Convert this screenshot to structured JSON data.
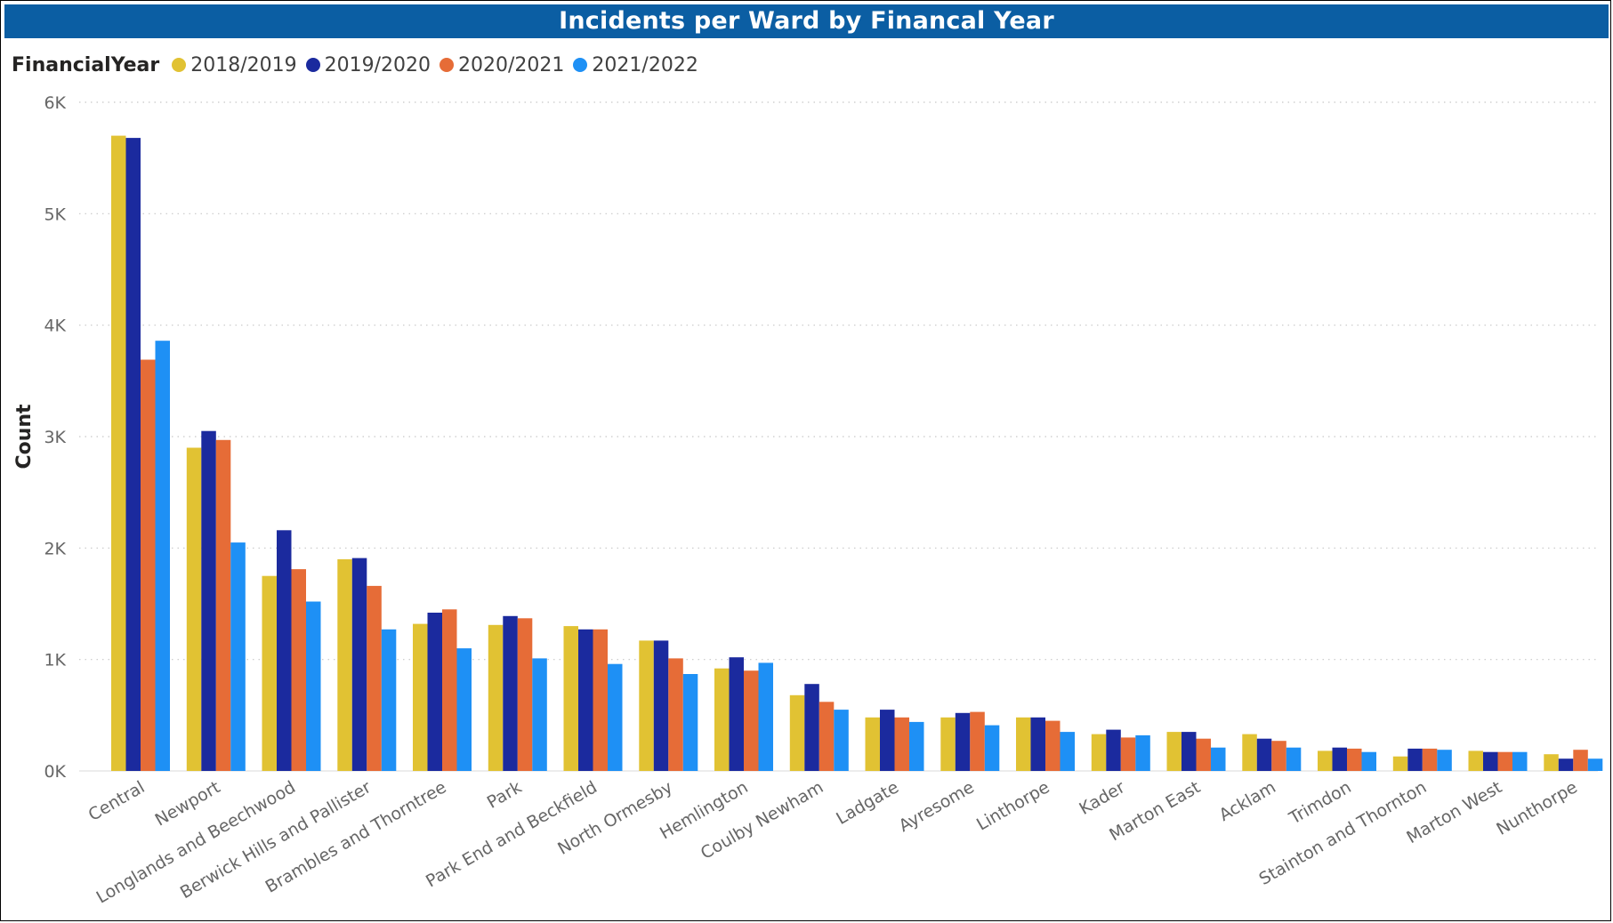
{
  "title": "Incidents per Ward by Financal Year",
  "legend": {
    "title": "FinancialYear",
    "items": [
      {
        "label": "2018/2019",
        "color": "#E1C233"
      },
      {
        "label": "2019/2020",
        "color": "#1B2A9E"
      },
      {
        "label": "2020/2021",
        "color": "#E66C37"
      },
      {
        "label": "2021/2022",
        "color": "#1E90F5"
      }
    ]
  },
  "chart_data": {
    "type": "bar",
    "ylabel": "Count",
    "xlabel": "",
    "ylim": [
      0,
      6000
    ],
    "yticks": [
      {
        "value": 0,
        "label": "0K"
      },
      {
        "value": 1000,
        "label": "1K"
      },
      {
        "value": 2000,
        "label": "2K"
      },
      {
        "value": 3000,
        "label": "3K"
      },
      {
        "value": 4000,
        "label": "4K"
      },
      {
        "value": 5000,
        "label": "5K"
      },
      {
        "value": 6000,
        "label": "6K"
      }
    ],
    "grid": true,
    "legend_position": "top-left",
    "categories": [
      "Central",
      "Newport",
      "Longlands and Beechwood",
      "Berwick Hills and Pallister",
      "Brambles and Thorntree",
      "Park",
      "Park End and Beckfield",
      "North Ormesby",
      "Hemlington",
      "Coulby Newham",
      "Ladgate",
      "Ayresome",
      "Linthorpe",
      "Kader",
      "Marton East",
      "Acklam",
      "Trimdon",
      "Stainton and Thornton",
      "Marton West",
      "Nunthorpe"
    ],
    "series": [
      {
        "name": "2018/2019",
        "color": "#E1C233",
        "values": [
          5700,
          2900,
          1750,
          1900,
          1320,
          1310,
          1300,
          1170,
          920,
          680,
          480,
          480,
          480,
          330,
          350,
          330,
          180,
          130,
          180,
          150
        ]
      },
      {
        "name": "2019/2020",
        "color": "#1B2A9E",
        "values": [
          5680,
          3050,
          2160,
          1910,
          1420,
          1390,
          1270,
          1170,
          1020,
          780,
          550,
          520,
          480,
          370,
          350,
          290,
          210,
          200,
          170,
          110
        ]
      },
      {
        "name": "2020/2021",
        "color": "#E66C37",
        "values": [
          3690,
          2970,
          1810,
          1660,
          1450,
          1370,
          1270,
          1010,
          900,
          620,
          480,
          530,
          450,
          300,
          290,
          270,
          200,
          200,
          170,
          190
        ]
      },
      {
        "name": "2021/2022",
        "color": "#1E90F5",
        "values": [
          3860,
          2050,
          1520,
          1270,
          1100,
          1010,
          960,
          870,
          970,
          550,
          440,
          410,
          350,
          320,
          210,
          210,
          170,
          190,
          170,
          110
        ]
      }
    ]
  }
}
